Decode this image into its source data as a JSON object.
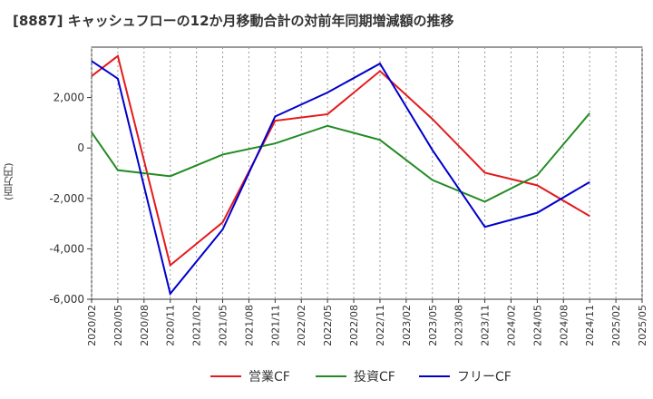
{
  "chart_data": {
    "type": "line",
    "title": "[8887]  キャッシュフローの12か月移動合計の対前年同期増減額の推移",
    "ylabel": "(百万円)",
    "xlabel": "",
    "categories": [
      "2020/02",
      "2020/05",
      "2020/08",
      "2020/11",
      "2021/02",
      "2021/05",
      "2021/08",
      "2021/11",
      "2022/02",
      "2022/05",
      "2022/08",
      "2022/11",
      "2023/02",
      "2023/05",
      "2023/08",
      "2023/11",
      "2024/02",
      "2024/05",
      "2024/08",
      "2024/11",
      "2025/02",
      "2025/05"
    ],
    "ylim": [
      -6000,
      4000
    ],
    "yticks": [
      -6000,
      -4000,
      -2000,
      0,
      2000
    ],
    "ytick_labels": [
      "-6,000",
      "-4,000",
      "-2,000",
      "0",
      "2,000"
    ],
    "grid": "vertical-dotted",
    "legend_position": "bottom",
    "series": [
      {
        "name": "営業CF",
        "color": "#e41a1c",
        "x": [
          "2020/02",
          "2020/05",
          "2020/11",
          "2021/05",
          "2021/11",
          "2022/05",
          "2022/11",
          "2023/05",
          "2023/11",
          "2024/05",
          "2024/11"
        ],
        "values": [
          2850,
          3650,
          -4650,
          -2950,
          1080,
          1340,
          3050,
          1150,
          -980,
          -1480,
          -2700
        ]
      },
      {
        "name": "投資CF",
        "color": "#228b22",
        "x": [
          "2020/02",
          "2020/05",
          "2020/11",
          "2021/05",
          "2021/11",
          "2022/05",
          "2022/11",
          "2023/05",
          "2023/11",
          "2024/05",
          "2024/11"
        ],
        "values": [
          620,
          -880,
          -1120,
          -260,
          180,
          880,
          320,
          -1270,
          -2130,
          -1080,
          1380
        ]
      },
      {
        "name": "フリーCF",
        "color": "#0000cd",
        "x": [
          "2020/02",
          "2020/05",
          "2020/11",
          "2021/05",
          "2021/11",
          "2022/05",
          "2022/11",
          "2023/05",
          "2023/11",
          "2024/05",
          "2024/11"
        ],
        "values": [
          3450,
          2750,
          -5780,
          -3230,
          1250,
          2200,
          3350,
          -80,
          -3130,
          -2570,
          -1350
        ]
      }
    ]
  }
}
